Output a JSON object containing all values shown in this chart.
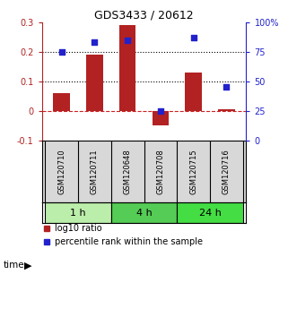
{
  "title": "GDS3433 / 20612",
  "samples": [
    "GSM120710",
    "GSM120711",
    "GSM120648",
    "GSM120708",
    "GSM120715",
    "GSM120716"
  ],
  "log10_ratio": [
    0.06,
    0.19,
    0.29,
    -0.05,
    0.13,
    0.005
  ],
  "percentile_rank": [
    75,
    83,
    85,
    25,
    87,
    45
  ],
  "bar_color": "#B22222",
  "square_color": "#2222CC",
  "ylim_left": [
    -0.1,
    0.3
  ],
  "ylim_right": [
    0,
    100
  ],
  "yticks_left": [
    -0.1,
    0.0,
    0.1,
    0.2,
    0.3
  ],
  "ytick_labels_left": [
    "-0.1",
    "0",
    "0.1",
    "0.2",
    "0.3"
  ],
  "yticks_right": [
    0,
    25,
    50,
    75,
    100
  ],
  "ytick_labels_right": [
    "0",
    "25",
    "50",
    "75",
    "100%"
  ],
  "time_groups": [
    {
      "label": "1 h",
      "start": 0,
      "end": 2,
      "color": "#BBEEAA"
    },
    {
      "label": "4 h",
      "start": 2,
      "end": 4,
      "color": "#55CC55"
    },
    {
      "label": "24 h",
      "start": 4,
      "end": 6,
      "color": "#44DD44"
    }
  ],
  "sample_bg": "#D8D8D8",
  "legend_bar_label": "log10 ratio",
  "legend_square_label": "percentile rank within the sample",
  "time_label": "time"
}
